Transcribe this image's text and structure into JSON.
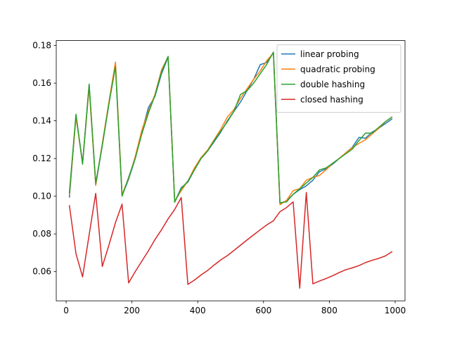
{
  "chart_data": {
    "type": "line",
    "title": "",
    "xlabel": "",
    "ylabel": "",
    "xlim": [
      -30,
      1030
    ],
    "ylim": [
      0.0445,
      0.1826
    ],
    "xticks": [
      0,
      200,
      400,
      600,
      800,
      1000
    ],
    "yticks": [
      0.06,
      0.08,
      0.1,
      0.12,
      0.14,
      0.16,
      0.18
    ],
    "xtick_labels": [
      "0",
      "200",
      "400",
      "600",
      "800",
      "1000"
    ],
    "ytick_labels": [
      "0.06",
      "0.08",
      "0.10",
      "0.12",
      "0.14",
      "0.16",
      "0.18"
    ],
    "grid": false,
    "legend_position": "top-right",
    "series": [
      {
        "name": "linear probing",
        "color": "#1f77b4",
        "x": [
          10,
          30,
          50,
          70,
          90,
          110,
          130,
          150,
          170,
          190,
          210,
          230,
          250,
          270,
          290,
          310,
          330,
          350,
          370,
          390,
          410,
          430,
          450,
          470,
          490,
          510,
          530,
          550,
          570,
          590,
          610,
          630,
          650,
          670,
          690,
          710,
          730,
          750,
          770,
          790,
          810,
          830,
          850,
          870,
          890,
          910,
          930,
          950,
          970,
          990
        ],
        "y": [
          0.0995,
          0.1428,
          0.1178,
          0.1593,
          0.1058,
          0.127,
          0.149,
          0.1693,
          0.1003,
          0.109,
          0.12,
          0.134,
          0.147,
          0.153,
          0.165,
          0.1738,
          0.097,
          0.1045,
          0.1075,
          0.114,
          0.12,
          0.124,
          0.129,
          0.134,
          0.14,
          0.145,
          0.15,
          0.156,
          0.162,
          0.1698,
          0.171,
          0.1762,
          0.0962,
          0.0975,
          0.101,
          0.1035,
          0.1055,
          0.1085,
          0.113,
          0.1145,
          0.117,
          0.12,
          0.123,
          0.126,
          0.1312,
          0.1308,
          0.134,
          0.136,
          0.1385,
          0.141
        ]
      },
      {
        "name": "quadratic probing",
        "color": "#ff7f0e",
        "x": [
          10,
          30,
          50,
          70,
          90,
          110,
          130,
          150,
          170,
          190,
          210,
          230,
          250,
          270,
          290,
          310,
          330,
          350,
          370,
          390,
          410,
          430,
          450,
          470,
          490,
          510,
          530,
          550,
          570,
          590,
          610,
          630,
          650,
          670,
          690,
          710,
          730,
          750,
          770,
          790,
          810,
          830,
          850,
          870,
          890,
          910,
          930,
          950,
          970,
          990
        ],
        "y": [
          0.101,
          0.1418,
          0.1175,
          0.1575,
          0.106,
          0.128,
          0.15,
          0.1712,
          0.101,
          0.1095,
          0.121,
          0.135,
          0.145,
          0.154,
          0.167,
          0.174,
          0.0975,
          0.103,
          0.108,
          0.115,
          0.1205,
          0.1245,
          0.13,
          0.1355,
          0.142,
          0.146,
          0.152,
          0.157,
          0.162,
          0.1665,
          0.172,
          0.176,
          0.0955,
          0.0978,
          0.103,
          0.104,
          0.1085,
          0.11,
          0.111,
          0.114,
          0.1175,
          0.12,
          0.123,
          0.1258,
          0.128,
          0.13,
          0.133,
          0.136,
          0.1395,
          0.142
        ]
      },
      {
        "name": "double hashing",
        "color": "#2ca02c",
        "x": [
          10,
          30,
          50,
          70,
          90,
          110,
          130,
          150,
          170,
          190,
          210,
          230,
          250,
          270,
          290,
          310,
          330,
          350,
          370,
          390,
          410,
          430,
          450,
          470,
          490,
          510,
          530,
          550,
          570,
          590,
          610,
          630,
          650,
          670,
          690,
          710,
          730,
          750,
          770,
          790,
          810,
          830,
          850,
          870,
          890,
          910,
          930,
          950,
          970,
          990
        ],
        "y": [
          0.102,
          0.1435,
          0.117,
          0.1595,
          0.107,
          0.127,
          0.149,
          0.1688,
          0.1,
          0.11,
          0.12,
          0.133,
          0.144,
          0.1535,
          0.166,
          0.1742,
          0.0968,
          0.104,
          0.108,
          0.114,
          0.12,
          0.124,
          0.1295,
          0.1345,
          0.1395,
          0.145,
          0.154,
          0.156,
          0.16,
          0.165,
          0.17,
          0.1765,
          0.0965,
          0.097,
          0.101,
          0.104,
          0.107,
          0.11,
          0.114,
          0.115,
          0.1175,
          0.12,
          0.1225,
          0.125,
          0.1295,
          0.1335,
          0.1335,
          0.1365,
          0.1395,
          0.142
        ]
      },
      {
        "name": "closed hashing",
        "color": "#d62728",
        "x": [
          10,
          30,
          50,
          70,
          90,
          110,
          130,
          150,
          170,
          190,
          210,
          230,
          250,
          270,
          290,
          310,
          330,
          350,
          370,
          390,
          410,
          430,
          450,
          470,
          490,
          510,
          530,
          550,
          570,
          590,
          610,
          630,
          650,
          670,
          690,
          710,
          730,
          750,
          770,
          790,
          810,
          830,
          850,
          870,
          890,
          910,
          930,
          950,
          970,
          990
        ],
        "y": [
          0.095,
          0.0695,
          0.0572,
          0.0795,
          0.1015,
          0.0627,
          0.074,
          0.086,
          0.0958,
          0.054,
          0.06,
          0.0655,
          0.071,
          0.077,
          0.0822,
          0.088,
          0.093,
          0.0993,
          0.0532,
          0.0555,
          0.0582,
          0.0606,
          0.0635,
          0.0662,
          0.0685,
          0.0712,
          0.074,
          0.0768,
          0.0795,
          0.0822,
          0.0848,
          0.087,
          0.0918,
          0.094,
          0.097,
          0.0512,
          0.102,
          0.0535,
          0.055,
          0.0563,
          0.0578,
          0.0595,
          0.061,
          0.062,
          0.0632,
          0.0648,
          0.066,
          0.067,
          0.0683,
          0.0705
        ]
      }
    ]
  }
}
